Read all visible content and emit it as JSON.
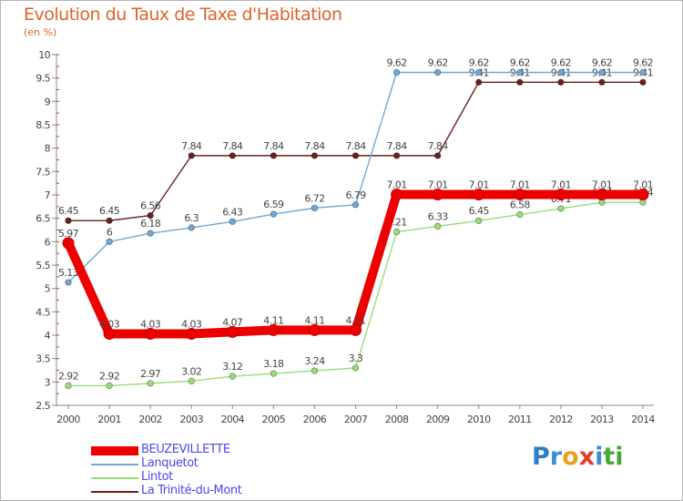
{
  "chart_data": {
    "type": "line",
    "title": "Evolution du Taux de Taxe d'Habitation",
    "unit_label": "(en %)",
    "x": [
      2000,
      2001,
      2002,
      2003,
      2004,
      2005,
      2006,
      2007,
      2008,
      2009,
      2010,
      2011,
      2012,
      2013,
      2014
    ],
    "ylim": [
      2.5,
      10
    ],
    "yticks": [
      2.5,
      3,
      3.5,
      4,
      4.5,
      5,
      5.5,
      6,
      6.5,
      7,
      7.5,
      8,
      8.5,
      9,
      9.5,
      10
    ],
    "grid": false,
    "legend_position": "bottom-left",
    "series": [
      {
        "name": "La Trinité-du-Mont",
        "color": "#6b1f1f",
        "values": [
          6.45,
          6.45,
          6.56,
          7.84,
          7.84,
          7.84,
          7.84,
          7.84,
          7.84,
          7.84,
          9.41,
          9.41,
          9.41,
          9.41,
          9.41
        ],
        "labels": [
          "6.45",
          "6.45",
          "6.56",
          "7.84",
          "7.84",
          "7.84",
          "7.84",
          "7.84",
          "7.84",
          "7.84",
          "9.41",
          "9.41",
          "9.41",
          "9.41",
          "9.41"
        ]
      },
      {
        "name": "Lanquetot",
        "color": "#6fa8d6",
        "values": [
          5.13,
          6,
          6.18,
          6.3,
          6.43,
          6.59,
          6.72,
          6.79,
          9.62,
          9.62,
          9.62,
          9.62,
          9.62,
          9.62,
          9.62
        ],
        "labels": [
          "5.13",
          "6",
          "6.18",
          "6.3",
          "6.43",
          "6.59",
          "6.72",
          "6.79",
          "9.62",
          "9.62",
          "9.62",
          "9.62",
          "9.62",
          "9.62",
          "9.62"
        ]
      },
      {
        "name": "Lintot",
        "color": "#99dd77",
        "values": [
          2.92,
          2.92,
          2.97,
          3.02,
          3.12,
          3.18,
          3.24,
          3.3,
          6.21,
          6.33,
          6.45,
          6.58,
          6.71,
          6.84,
          6.84
        ],
        "labels": [
          "2.92",
          "2.92",
          "2.97",
          "3.02",
          "3.12",
          "3.18",
          "3.24",
          "3.3",
          "6.21",
          "6.33",
          "6.45",
          "6.58",
          "6.71",
          "6.84",
          "6.84"
        ]
      },
      {
        "name": "BEUZEVILLETTE",
        "color": "#ee0000",
        "values": [
          5.97,
          4.03,
          4.03,
          4.03,
          4.07,
          4.11,
          4.11,
          4.11,
          7.01,
          7.01,
          7.01,
          7.01,
          7.01,
          7.01,
          7.01
        ],
        "labels": [
          "5.97",
          "4.03",
          "4.03",
          "4.03",
          "4.07",
          "4.11",
          "4.11",
          "4.11",
          "7.01",
          "7.01",
          "7.01",
          "7.01",
          "7.01",
          "7.01",
          "7.01"
        ]
      }
    ],
    "legend": [
      {
        "name": "BEUZEVILLETTE",
        "color": "#ee0000",
        "weight": "thick"
      },
      {
        "name": "Lanquetot",
        "color": "#6fa8d6",
        "weight": "thin"
      },
      {
        "name": "Lintot",
        "color": "#99dd77",
        "weight": "thin"
      },
      {
        "name": "La Trinité-du-Mont",
        "color": "#6b1f1f",
        "weight": "thin"
      }
    ]
  },
  "brand": {
    "letters": [
      "P",
      "r",
      "o",
      "x",
      "i",
      "t",
      "i"
    ],
    "colors": [
      "#2f7fc4",
      "#3b8fd4",
      "#e8a21d",
      "#e2402a",
      "#3b8fd4",
      "#4aa83a",
      "#4aa83a"
    ]
  }
}
